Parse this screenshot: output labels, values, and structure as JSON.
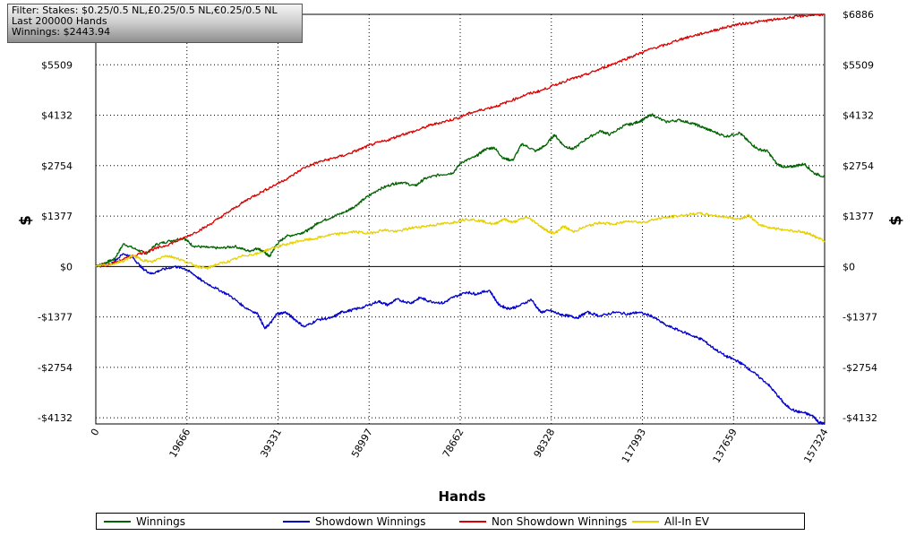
{
  "info": {
    "filter": "Filter: Stakes: $0.25/0.5 NL,£0.25/0.5 NL,€0.25/0.5 NL",
    "last": "Last  200000 Hands",
    "winnings": "Winnings: $2443.94"
  },
  "chart_data": {
    "type": "line",
    "xlabel": "Hands",
    "ylabel_left": "$",
    "ylabel_right": "$",
    "xlim": [
      0,
      157324
    ],
    "ylim": [
      -4300,
      6886
    ],
    "x_ticks": [
      0,
      19666,
      39331,
      58997,
      78662,
      98328,
      117993,
      137659,
      157324
    ],
    "x_tick_labels": [
      "0",
      "19666",
      "39331",
      "58997",
      "78662",
      "98328",
      "117993",
      "137659",
      "157324"
    ],
    "y_ticks": [
      -4132,
      -2754,
      -1377,
      0,
      1377,
      2754,
      4132,
      5509,
      6886
    ],
    "y_tick_labels": [
      "-$4132",
      "-$2754",
      "-$1377",
      "$0",
      "$1377",
      "$2754",
      "$4132",
      "$5509",
      "$6886"
    ],
    "grid": true,
    "legend_position": "bottom",
    "series": [
      {
        "name": "Winnings",
        "color": "#006400",
        "points": [
          [
            0,
            0
          ],
          [
            2000,
            100
          ],
          [
            4000,
            200
          ],
          [
            6000,
            620
          ],
          [
            9000,
            450
          ],
          [
            11000,
            350
          ],
          [
            13000,
            600
          ],
          [
            16000,
            700
          ],
          [
            19000,
            780
          ],
          [
            21000,
            560
          ],
          [
            24000,
            520
          ],
          [
            27000,
            500
          ],
          [
            30000,
            550
          ],
          [
            33000,
            420
          ],
          [
            35000,
            500
          ],
          [
            36500,
            380
          ],
          [
            37500,
            270
          ],
          [
            39000,
            600
          ],
          [
            41000,
            820
          ],
          [
            44000,
            900
          ],
          [
            46000,
            1000
          ],
          [
            48000,
            1200
          ],
          [
            51000,
            1350
          ],
          [
            54000,
            1500
          ],
          [
            56000,
            1650
          ],
          [
            58000,
            1850
          ],
          [
            61000,
            2100
          ],
          [
            64000,
            2250
          ],
          [
            66000,
            2300
          ],
          [
            69000,
            2200
          ],
          [
            71000,
            2400
          ],
          [
            74000,
            2500
          ],
          [
            77000,
            2550
          ],
          [
            79000,
            2850
          ],
          [
            82000,
            3000
          ],
          [
            84000,
            3200
          ],
          [
            86000,
            3250
          ],
          [
            88000,
            2950
          ],
          [
            90000,
            2900
          ],
          [
            92000,
            3350
          ],
          [
            95000,
            3150
          ],
          [
            97000,
            3300
          ],
          [
            99000,
            3600
          ],
          [
            101000,
            3300
          ],
          [
            103000,
            3200
          ],
          [
            106000,
            3500
          ],
          [
            109000,
            3700
          ],
          [
            111000,
            3600
          ],
          [
            114000,
            3850
          ],
          [
            116000,
            3900
          ],
          [
            118000,
            4000
          ],
          [
            120000,
            4150
          ],
          [
            123000,
            3950
          ],
          [
            126000,
            4000
          ],
          [
            129000,
            3900
          ],
          [
            131000,
            3800
          ],
          [
            133000,
            3700
          ],
          [
            136000,
            3550
          ],
          [
            139000,
            3650
          ],
          [
            141000,
            3400
          ],
          [
            143000,
            3200
          ],
          [
            145000,
            3150
          ],
          [
            147000,
            2800
          ],
          [
            149000,
            2700
          ],
          [
            151000,
            2750
          ],
          [
            153000,
            2800
          ],
          [
            155000,
            2550
          ],
          [
            157324,
            2450
          ]
        ]
      },
      {
        "name": "Showdown Winnings",
        "color": "#0000cc",
        "points": [
          [
            0,
            0
          ],
          [
            3000,
            50
          ],
          [
            6000,
            350
          ],
          [
            8000,
            250
          ],
          [
            10000,
            -50
          ],
          [
            12000,
            -200
          ],
          [
            14000,
            -100
          ],
          [
            17000,
            0
          ],
          [
            19000,
            -50
          ],
          [
            21000,
            -200
          ],
          [
            23000,
            -400
          ],
          [
            26000,
            -600
          ],
          [
            29000,
            -800
          ],
          [
            32000,
            -1100
          ],
          [
            35000,
            -1300
          ],
          [
            36500,
            -1700
          ],
          [
            38000,
            -1500
          ],
          [
            39000,
            -1300
          ],
          [
            41000,
            -1250
          ],
          [
            43000,
            -1450
          ],
          [
            45000,
            -1650
          ],
          [
            48000,
            -1450
          ],
          [
            51000,
            -1400
          ],
          [
            53000,
            -1250
          ],
          [
            55000,
            -1200
          ],
          [
            58000,
            -1100
          ],
          [
            61000,
            -950
          ],
          [
            63000,
            -1050
          ],
          [
            65000,
            -900
          ],
          [
            68000,
            -1000
          ],
          [
            70000,
            -850
          ],
          [
            72000,
            -950
          ],
          [
            75000,
            -1000
          ],
          [
            77000,
            -850
          ],
          [
            80000,
            -700
          ],
          [
            82000,
            -750
          ],
          [
            85000,
            -650
          ],
          [
            87000,
            -1050
          ],
          [
            89000,
            -1150
          ],
          [
            91000,
            -1100
          ],
          [
            94000,
            -900
          ],
          [
            96000,
            -1250
          ],
          [
            98000,
            -1200
          ],
          [
            100000,
            -1300
          ],
          [
            102000,
            -1350
          ],
          [
            104000,
            -1400
          ],
          [
            106000,
            -1250
          ],
          [
            109000,
            -1350
          ],
          [
            112000,
            -1250
          ],
          [
            115000,
            -1300
          ],
          [
            117000,
            -1250
          ],
          [
            120000,
            -1350
          ],
          [
            123000,
            -1600
          ],
          [
            126000,
            -1750
          ],
          [
            129000,
            -1900
          ],
          [
            131000,
            -2000
          ],
          [
            133000,
            -2200
          ],
          [
            136000,
            -2450
          ],
          [
            138000,
            -2550
          ],
          [
            140000,
            -2700
          ],
          [
            142000,
            -2900
          ],
          [
            145000,
            -3200
          ],
          [
            147000,
            -3500
          ],
          [
            149000,
            -3800
          ],
          [
            151000,
            -3950
          ],
          [
            153000,
            -4000
          ],
          [
            155000,
            -4100
          ],
          [
            156000,
            -4250
          ],
          [
            157324,
            -4300
          ]
        ]
      },
      {
        "name": "Non Showdown Winnings",
        "color": "#dd0000",
        "points": [
          [
            0,
            0
          ],
          [
            3000,
            60
          ],
          [
            6000,
            200
          ],
          [
            9000,
            330
          ],
          [
            12000,
            450
          ],
          [
            15000,
            570
          ],
          [
            18000,
            720
          ],
          [
            21000,
            900
          ],
          [
            24000,
            1100
          ],
          [
            27000,
            1350
          ],
          [
            30000,
            1600
          ],
          [
            33000,
            1850
          ],
          [
            36000,
            2050
          ],
          [
            39000,
            2250
          ],
          [
            42000,
            2450
          ],
          [
            45000,
            2700
          ],
          [
            48000,
            2850
          ],
          [
            51000,
            2950
          ],
          [
            54000,
            3050
          ],
          [
            57000,
            3200
          ],
          [
            60000,
            3350
          ],
          [
            63000,
            3450
          ],
          [
            66000,
            3600
          ],
          [
            69000,
            3700
          ],
          [
            72000,
            3850
          ],
          [
            75000,
            3950
          ],
          [
            78000,
            4050
          ],
          [
            81000,
            4200
          ],
          [
            84000,
            4300
          ],
          [
            87000,
            4400
          ],
          [
            90000,
            4550
          ],
          [
            93000,
            4700
          ],
          [
            96000,
            4800
          ],
          [
            99000,
            4950
          ],
          [
            102000,
            5100
          ],
          [
            105000,
            5200
          ],
          [
            108000,
            5350
          ],
          [
            111000,
            5500
          ],
          [
            114000,
            5650
          ],
          [
            117000,
            5800
          ],
          [
            120000,
            5950
          ],
          [
            123000,
            6050
          ],
          [
            126000,
            6200
          ],
          [
            129000,
            6300
          ],
          [
            132000,
            6400
          ],
          [
            135000,
            6500
          ],
          [
            138000,
            6600
          ],
          [
            141000,
            6650
          ],
          [
            144000,
            6700
          ],
          [
            147000,
            6750
          ],
          [
            150000,
            6800
          ],
          [
            153000,
            6850
          ],
          [
            157324,
            6886
          ]
        ]
      },
      {
        "name": "All-In EV",
        "color": "#e6d000",
        "points": [
          [
            0,
            0
          ],
          [
            3000,
            50
          ],
          [
            6000,
            150
          ],
          [
            8000,
            300
          ],
          [
            10000,
            180
          ],
          [
            12000,
            120
          ],
          [
            15000,
            300
          ],
          [
            17000,
            250
          ],
          [
            20000,
            100
          ],
          [
            22000,
            0
          ],
          [
            24000,
            -50
          ],
          [
            26000,
            50
          ],
          [
            29000,
            150
          ],
          [
            32000,
            300
          ],
          [
            35000,
            350
          ],
          [
            38000,
            500
          ],
          [
            41000,
            600
          ],
          [
            44000,
            700
          ],
          [
            47000,
            750
          ],
          [
            50000,
            850
          ],
          [
            53000,
            900
          ],
          [
            56000,
            950
          ],
          [
            59000,
            900
          ],
          [
            62000,
            1000
          ],
          [
            65000,
            950
          ],
          [
            68000,
            1050
          ],
          [
            71000,
            1100
          ],
          [
            74000,
            1150
          ],
          [
            77000,
            1200
          ],
          [
            80000,
            1300
          ],
          [
            83000,
            1250
          ],
          [
            86000,
            1150
          ],
          [
            88000,
            1300
          ],
          [
            90000,
            1200
          ],
          [
            93000,
            1350
          ],
          [
            95000,
            1200
          ],
          [
            97000,
            1000
          ],
          [
            99000,
            900
          ],
          [
            101000,
            1100
          ],
          [
            103000,
            950
          ],
          [
            106000,
            1100
          ],
          [
            109000,
            1200
          ],
          [
            112000,
            1150
          ],
          [
            115000,
            1250
          ],
          [
            118000,
            1200
          ],
          [
            121000,
            1300
          ],
          [
            124000,
            1350
          ],
          [
            127000,
            1400
          ],
          [
            130000,
            1450
          ],
          [
            133000,
            1400
          ],
          [
            136000,
            1350
          ],
          [
            139000,
            1300
          ],
          [
            141000,
            1400
          ],
          [
            143000,
            1150
          ],
          [
            146000,
            1050
          ],
          [
            149000,
            1000
          ],
          [
            152000,
            950
          ],
          [
            154000,
            900
          ],
          [
            155500,
            800
          ],
          [
            157324,
            700
          ]
        ]
      }
    ]
  }
}
